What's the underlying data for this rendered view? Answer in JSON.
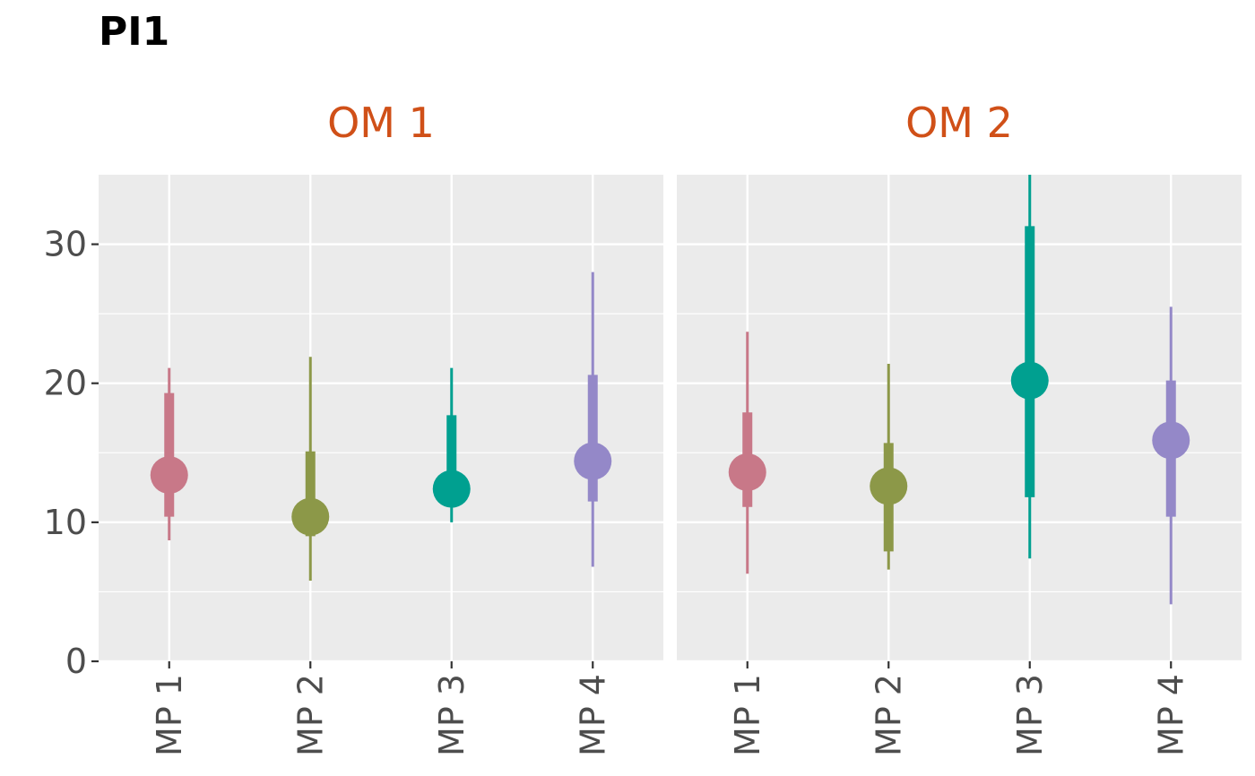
{
  "chart_data": {
    "type": "pointrange",
    "title": "PI1",
    "ylim": [
      0,
      35
    ],
    "y_ticks": [
      0,
      10,
      20,
      30
    ],
    "y_tick_labels": [
      "0",
      "10",
      "20",
      "30"
    ],
    "grid": true,
    "strip_color": "#d05018",
    "categories": [
      "MP 1",
      "MP 2",
      "MP 3",
      "MP 4"
    ],
    "colors": [
      "#c87888",
      "#8c9848",
      "#00a090",
      "#9488c8"
    ],
    "panels": [
      {
        "label": "OM 1",
        "points": [
          {
            "category": "MP 1",
            "median": 13.4,
            "inner_low": 10.4,
            "inner_high": 19.3,
            "outer_low": 8.7,
            "outer_high": 21.1
          },
          {
            "category": "MP 2",
            "median": 10.4,
            "inner_low": 9.0,
            "inner_high": 15.1,
            "outer_low": 5.8,
            "outer_high": 21.9
          },
          {
            "category": "MP 3",
            "median": 12.4,
            "inner_low": 12.4,
            "inner_high": 17.7,
            "outer_low": 10.0,
            "outer_high": 21.1
          },
          {
            "category": "MP 4",
            "median": 14.4,
            "inner_low": 11.5,
            "inner_high": 20.6,
            "outer_low": 6.8,
            "outer_high": 28.0
          }
        ]
      },
      {
        "label": "OM 2",
        "points": [
          {
            "category": "MP 1",
            "median": 13.6,
            "inner_low": 11.1,
            "inner_high": 17.9,
            "outer_low": 6.3,
            "outer_high": 23.7
          },
          {
            "category": "MP 2",
            "median": 12.6,
            "inner_low": 7.9,
            "inner_high": 15.7,
            "outer_low": 6.6,
            "outer_high": 21.4
          },
          {
            "category": "MP 3",
            "median": 20.2,
            "inner_low": 11.8,
            "inner_high": 31.3,
            "outer_low": 7.4,
            "outer_high": 35.0
          },
          {
            "category": "MP 4",
            "median": 15.9,
            "inner_low": 10.4,
            "inner_high": 20.2,
            "outer_low": 4.1,
            "outer_high": 25.5
          }
        ]
      }
    ]
  }
}
